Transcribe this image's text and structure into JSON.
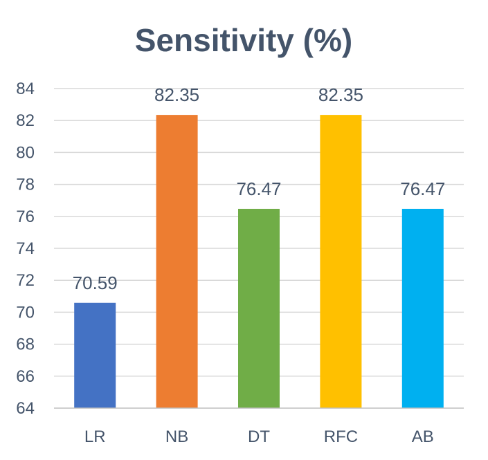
{
  "chart_data": {
    "type": "bar",
    "title": "Sensitivity (%)",
    "categories": [
      "LR",
      "NB",
      "DT",
      "RFC",
      "AB"
    ],
    "values": [
      70.59,
      82.35,
      76.47,
      82.35,
      76.47
    ],
    "data_labels": [
      "70.59",
      "82.35",
      "76.47",
      "82.35",
      "76.47"
    ],
    "colors": [
      "#4472C4",
      "#ED7D31",
      "#70AD47",
      "#FFC000",
      "#00B0F0"
    ],
    "ylim": [
      64,
      84
    ],
    "y_ticks": [
      64,
      66,
      68,
      70,
      72,
      74,
      76,
      78,
      80,
      82,
      84
    ],
    "grid": true,
    "legend": "none",
    "xlabel": "",
    "ylabel": ""
  }
}
